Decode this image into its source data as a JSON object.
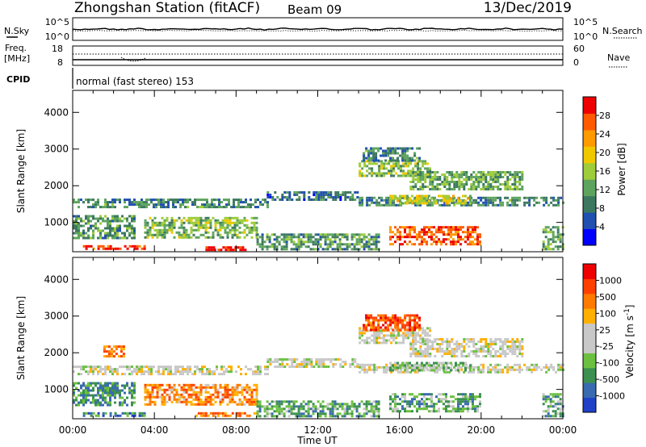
{
  "header": {
    "station": "Zhongshan Station (fitACF)",
    "beam": "Beam 09",
    "date": "13/Dec/2019"
  },
  "strip_panels": {
    "nsky_label": "N.Sky",
    "nsky_ticks": [
      "10^5",
      "10^0"
    ],
    "nsearch_label": "N.Search",
    "nsearch_ticks": [
      "10^5",
      "10^0"
    ],
    "freq_label": "Freq.",
    "freq_units": "[MHz]",
    "freq_ticks": [
      "18",
      "8"
    ],
    "nave_label": "Nave",
    "nave_ticks": [
      "60",
      "0"
    ],
    "cpid_label": "CPID",
    "cpid_text": "normal (fast stereo) 153"
  },
  "x_axis": {
    "title": "Time UT",
    "ticks": [
      "00:00",
      "04:00",
      "08:00",
      "12:00",
      "16:00",
      "20:00",
      "00:00"
    ]
  },
  "chart_data": [
    {
      "type": "heatmap",
      "panel": "power",
      "ylabel": "Slant Range [km]",
      "yticks": [
        1000,
        2000,
        3000,
        4000
      ],
      "ylim": [
        200,
        4600
      ],
      "xlim_hours": [
        0,
        24
      ],
      "colorbar": {
        "label": "Power [dB]",
        "ticks": [
          "28",
          "24",
          "20",
          "16",
          "12",
          "8",
          "4"
        ],
        "colors": [
          "#0000ff",
          "#2050b0",
          "#3c7860",
          "#5ea45e",
          "#9ecc3a",
          "#f0c800",
          "#ff9a00",
          "#ff5a00",
          "#ee0000"
        ]
      },
      "regions": [
        {
          "t0": 0.0,
          "t1": 9.5,
          "r0": 1450,
          "r1": 1650,
          "level": 0.3
        },
        {
          "t0": 9.5,
          "t1": 14.0,
          "r0": 1600,
          "r1": 1850,
          "level": 0.25
        },
        {
          "t0": 14.0,
          "t1": 24.0,
          "r0": 1500,
          "r1": 1700,
          "level": 0.3
        },
        {
          "t0": 14.0,
          "t1": 17.5,
          "r0": 2300,
          "r1": 2700,
          "level": 0.45
        },
        {
          "t0": 14.2,
          "t1": 17.0,
          "r0": 2700,
          "r1": 3050,
          "level": 0.3
        },
        {
          "t0": 16.5,
          "t1": 22.0,
          "r0": 1900,
          "r1": 2400,
          "level": 0.4
        },
        {
          "t0": 15.5,
          "t1": 19.5,
          "r0": 1500,
          "r1": 1750,
          "level": 0.55
        },
        {
          "t0": 15.5,
          "t1": 20.0,
          "r0": 400,
          "r1": 900,
          "level": 0.85
        },
        {
          "t0": 0.5,
          "t1": 3.5,
          "r0": 250,
          "r1": 380,
          "level": 0.9
        },
        {
          "t0": 6.5,
          "t1": 8.5,
          "r0": 250,
          "r1": 350,
          "level": 0.95
        },
        {
          "t0": 3.5,
          "t1": 9.0,
          "r0": 600,
          "r1": 1150,
          "level": 0.45
        },
        {
          "t0": 9.0,
          "t1": 15.0,
          "r0": 300,
          "r1": 700,
          "level": 0.35
        },
        {
          "t0": 0.0,
          "t1": 3.0,
          "r0": 600,
          "r1": 1200,
          "level": 0.35
        },
        {
          "t0": 23.0,
          "t1": 24.0,
          "r0": 300,
          "r1": 900,
          "level": 0.4
        }
      ]
    },
    {
      "type": "heatmap",
      "panel": "velocity",
      "ylabel": "Slant Range [km]",
      "yticks": [
        1000,
        2000,
        3000,
        4000
      ],
      "ylim": [
        200,
        4600
      ],
      "xlim_hours": [
        0,
        24
      ],
      "colorbar": {
        "label": "Velocity [m s^-1]",
        "ticks": [
          "1000",
          "500",
          "100",
          "25",
          "-25",
          "-100",
          "-500",
          "-1000"
        ],
        "colors": [
          "#2040c8",
          "#3a6ab0",
          "#3c9050",
          "#6cc040",
          "#c8c8c8",
          "#c8c8c8",
          "#ffb000",
          "#ff7a00",
          "#ff4000",
          "#ee0000"
        ]
      },
      "regions": [
        {
          "t0": 0.0,
          "t1": 9.5,
          "r0": 1450,
          "r1": 1650,
          "level": 0.5
        },
        {
          "t0": 9.5,
          "t1": 14.0,
          "r0": 1600,
          "r1": 1850,
          "level": 0.5
        },
        {
          "t0": 14.0,
          "t1": 24.0,
          "r0": 1500,
          "r1": 1700,
          "level": 0.5
        },
        {
          "t0": 14.0,
          "t1": 17.5,
          "r0": 2300,
          "r1": 2700,
          "level": 0.5
        },
        {
          "t0": 14.2,
          "t1": 17.0,
          "r0": 2600,
          "r1": 3050,
          "level": 0.82
        },
        {
          "t0": 16.5,
          "t1": 22.0,
          "r0": 1900,
          "r1": 2400,
          "level": 0.5
        },
        {
          "t0": 15.5,
          "t1": 19.5,
          "r0": 1500,
          "r1": 1750,
          "level": 0.35
        },
        {
          "t0": 15.5,
          "t1": 20.0,
          "r0": 400,
          "r1": 900,
          "level": 0.3
        },
        {
          "t0": 0.5,
          "t1": 3.5,
          "r0": 250,
          "r1": 380,
          "level": 0.2
        },
        {
          "t0": 6.0,
          "t1": 9.0,
          "r0": 250,
          "r1": 380,
          "level": 0.75
        },
        {
          "t0": 3.5,
          "t1": 9.0,
          "r0": 600,
          "r1": 1150,
          "level": 0.72
        },
        {
          "t0": 9.0,
          "t1": 15.0,
          "r0": 300,
          "r1": 700,
          "level": 0.3
        },
        {
          "t0": 0.0,
          "t1": 3.0,
          "r0": 600,
          "r1": 1200,
          "level": 0.25
        },
        {
          "t0": 23.0,
          "t1": 24.0,
          "r0": 300,
          "r1": 900,
          "level": 0.3
        },
        {
          "t0": 1.5,
          "t1": 2.5,
          "r0": 1900,
          "r1": 2200,
          "level": 0.75
        }
      ]
    }
  ]
}
